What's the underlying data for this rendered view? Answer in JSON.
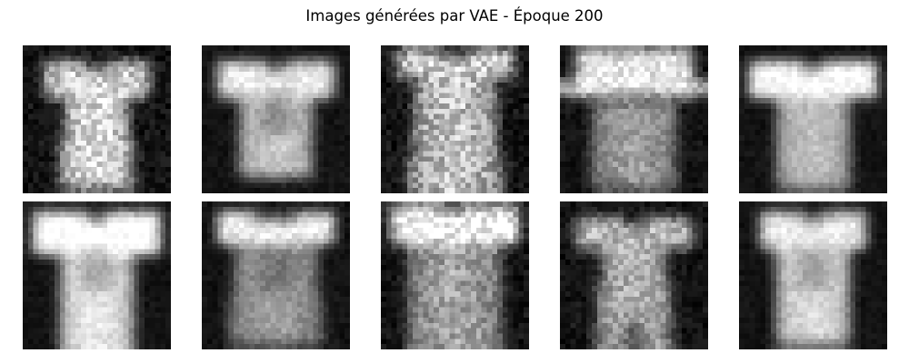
{
  "figure": {
    "title": "Images générées par VAE - Époque 200"
  },
  "grid": {
    "rows": 2,
    "columns": 5,
    "image_resolution": 28,
    "colormap": "grayscale",
    "samples": [
      {
        "row": 1,
        "col": 1,
        "content": "blurry t-shirt, noisy"
      },
      {
        "row": 1,
        "col": 2,
        "content": "t-shirt"
      },
      {
        "row": 1,
        "col": 3,
        "content": "noisy garment, blurry"
      },
      {
        "row": 1,
        "col": 4,
        "content": "garment with bright band"
      },
      {
        "row": 1,
        "col": 5,
        "content": "t-shirt, bright shoulders"
      },
      {
        "row": 2,
        "col": 1,
        "content": "t-shirt, bright"
      },
      {
        "row": 2,
        "col": 2,
        "content": "top, blurry"
      },
      {
        "row": 2,
        "col": 3,
        "content": "pullover, noisy"
      },
      {
        "row": 2,
        "col": 4,
        "content": "dress-like garment"
      },
      {
        "row": 2,
        "col": 5,
        "content": "t-shirt"
      }
    ]
  }
}
